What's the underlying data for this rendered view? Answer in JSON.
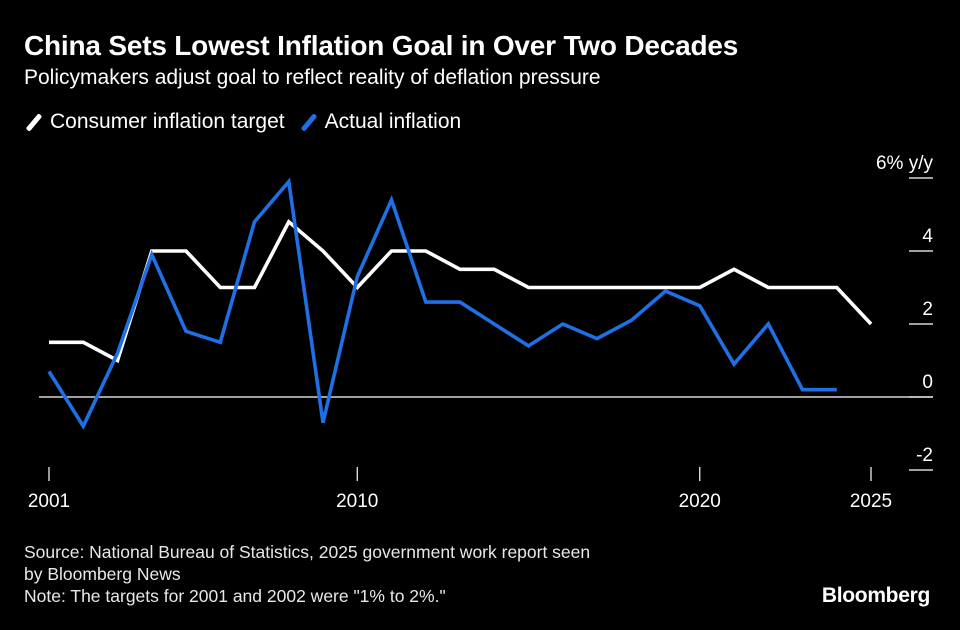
{
  "colors": {
    "background": "#000000",
    "target_line": "#ffffff",
    "actual_line": "#1f6fe5",
    "grid": "#ffffff",
    "text": "#ffffff"
  },
  "header": {
    "title": "China Sets Lowest Inflation Goal in Over Two Decades",
    "subtitle": "Policymakers adjust goal to reflect reality of deflation pressure"
  },
  "legend": {
    "items": [
      {
        "label": "Consumer inflation target",
        "color": "#ffffff"
      },
      {
        "label": "Actual inflation",
        "color": "#1f6fe5"
      }
    ]
  },
  "chart_data": {
    "type": "line",
    "title": "China Sets Lowest Inflation Goal in Over Two Decades",
    "subtitle": "Policymakers adjust goal to reflect reality of deflation pressure",
    "xlabel": "",
    "ylabel": "% y/y",
    "y_unit_label": "6% y/y",
    "ylim": [
      -2,
      6
    ],
    "xlim": [
      2001,
      2025
    ],
    "y_ticks": [
      {
        "value": 6,
        "label": "6% y/y"
      },
      {
        "value": 4,
        "label": "4"
      },
      {
        "value": 2,
        "label": "2"
      },
      {
        "value": 0,
        "label": "0"
      },
      {
        "value": -2,
        "label": "-2"
      }
    ],
    "x_ticks": [
      {
        "value": 2001,
        "label": "2001"
      },
      {
        "value": 2010,
        "label": "2010"
      },
      {
        "value": 2020,
        "label": "2020"
      },
      {
        "value": 2025,
        "label": "2025"
      }
    ],
    "grid": "horizontal",
    "legend_position": "top-left",
    "series": [
      {
        "name": "Consumer inflation target",
        "color": "#ffffff",
        "x": [
          2001,
          2002,
          2003,
          2004,
          2005,
          2006,
          2007,
          2008,
          2009,
          2010,
          2011,
          2012,
          2013,
          2014,
          2015,
          2016,
          2017,
          2018,
          2019,
          2020,
          2021,
          2022,
          2023,
          2024,
          2025
        ],
        "values": [
          1.5,
          1.5,
          1.0,
          4.0,
          4.0,
          3.0,
          3.0,
          4.8,
          4.0,
          3.0,
          4.0,
          4.0,
          3.5,
          3.5,
          3.0,
          3.0,
          3.0,
          3.0,
          3.0,
          3.0,
          3.5,
          3.0,
          3.0,
          3.0,
          2.0
        ]
      },
      {
        "name": "Actual inflation",
        "color": "#1f6fe5",
        "x": [
          2001,
          2002,
          2003,
          2004,
          2005,
          2006,
          2007,
          2008,
          2009,
          2010,
          2011,
          2012,
          2013,
          2014,
          2015,
          2016,
          2017,
          2018,
          2019,
          2020,
          2021,
          2022,
          2023,
          2024
        ],
        "values": [
          0.7,
          -0.8,
          1.2,
          3.9,
          1.8,
          1.5,
          4.8,
          5.9,
          -0.7,
          3.3,
          5.4,
          2.6,
          2.6,
          2.0,
          1.4,
          2.0,
          1.6,
          2.1,
          2.9,
          2.5,
          0.9,
          2.0,
          0.2,
          0.2
        ]
      }
    ]
  },
  "footer": {
    "source_line1": "Source: National Bureau of Statistics, 2025 government work report seen",
    "source_line2": "by Bloomberg News",
    "note": "Note: The targets for 2001 and 2002 were \"1% to 2%.\""
  },
  "brand": {
    "name": "Bloomberg"
  }
}
